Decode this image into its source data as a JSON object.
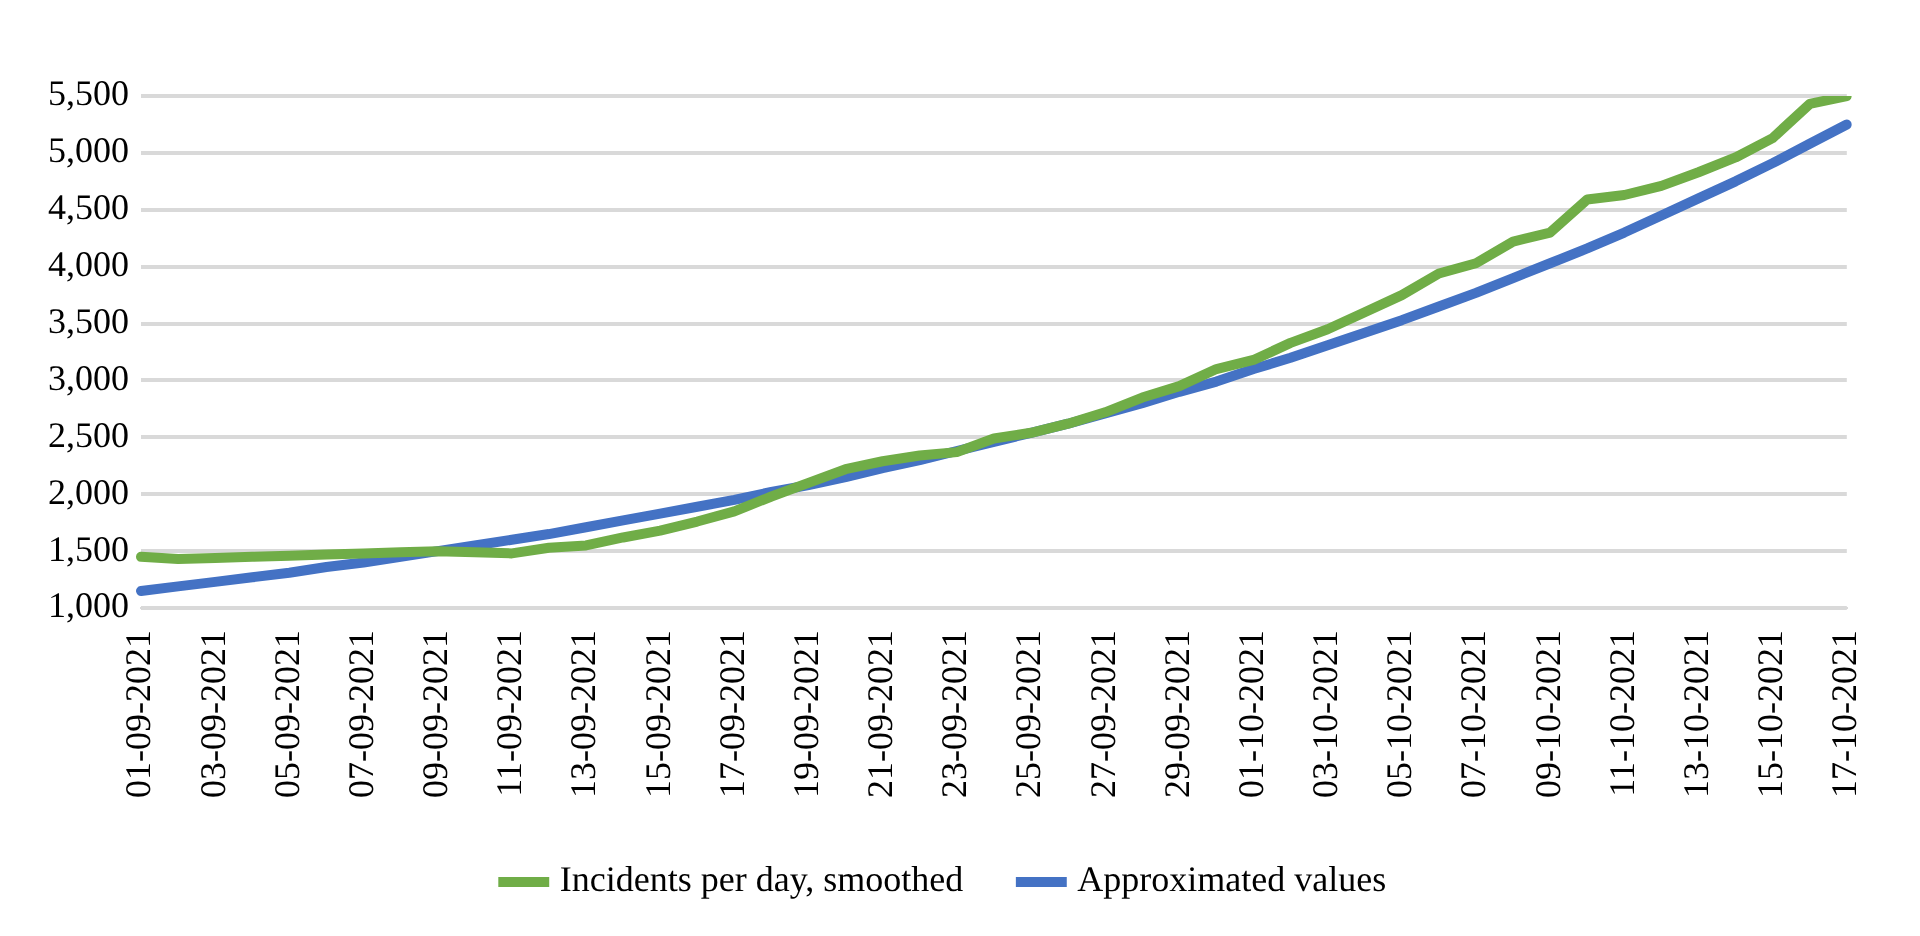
{
  "chart_data": {
    "type": "line",
    "categories": [
      "01-09-2021",
      null,
      "03-09-2021",
      null,
      "05-09-2021",
      null,
      "07-09-2021",
      null,
      "09-09-2021",
      null,
      "11-09-2021",
      null,
      "13-09-2021",
      null,
      "15-09-2021",
      null,
      "17-09-2021",
      null,
      "19-09-2021",
      null,
      "21-09-2021",
      null,
      "23-09-2021",
      null,
      "25-09-2021",
      null,
      "27-09-2021",
      null,
      "29-09-2021",
      null,
      "01-10-2021",
      null,
      "03-10-2021",
      null,
      "05-10-2021",
      null,
      "07-10-2021",
      null,
      "09-10-2021",
      null,
      "11-10-2021",
      null,
      "13-10-2021",
      null,
      "15-10-2021",
      null,
      "17-10-2021"
    ],
    "series": [
      {
        "name": "Incidents per day, smoothed",
        "color": "#70ad47",
        "values": [
          1450,
          1430,
          1440,
          1450,
          1460,
          1470,
          1480,
          1490,
          1500,
          1490,
          1480,
          1530,
          1550,
          1620,
          1680,
          1760,
          1850,
          1980,
          2100,
          2220,
          2290,
          2340,
          2370,
          2490,
          2540,
          2620,
          2720,
          2850,
          2950,
          3100,
          3180,
          3330,
          3450,
          3600,
          3750,
          3940,
          4030,
          4220,
          4300,
          4590,
          4630,
          4710,
          4830,
          4960,
          5130,
          5430,
          5500
        ]
      },
      {
        "name": "Approximated values",
        "color": "#4472c4",
        "values": [
          1150,
          1190,
          1230,
          1270,
          1310,
          1360,
          1400,
          1450,
          1500,
          1550,
          1600,
          1650,
          1710,
          1770,
          1830,
          1890,
          1950,
          2020,
          2080,
          2150,
          2230,
          2300,
          2380,
          2460,
          2540,
          2620,
          2710,
          2800,
          2900,
          2990,
          3100,
          3200,
          3310,
          3420,
          3530,
          3650,
          3770,
          3900,
          4030,
          4160,
          4300,
          4450,
          4600,
          4750,
          4910,
          5080,
          5250
        ]
      }
    ],
    "ylim": [
      1000,
      5500
    ],
    "yticks": [
      {
        "value": 1000,
        "label": "1,000"
      },
      {
        "value": 1500,
        "label": "1,500"
      },
      {
        "value": 2000,
        "label": "2,000"
      },
      {
        "value": 2500,
        "label": "2,500"
      },
      {
        "value": 3000,
        "label": "3,000"
      },
      {
        "value": 3500,
        "label": "3,500"
      },
      {
        "value": 4000,
        "label": "4,000"
      },
      {
        "value": 4500,
        "label": "4,500"
      },
      {
        "value": 5000,
        "label": "5,000"
      },
      {
        "value": 5500,
        "label": "5,500"
      }
    ],
    "grid": "y",
    "legend": "bottom",
    "marker": "none",
    "line_style": "solid"
  }
}
